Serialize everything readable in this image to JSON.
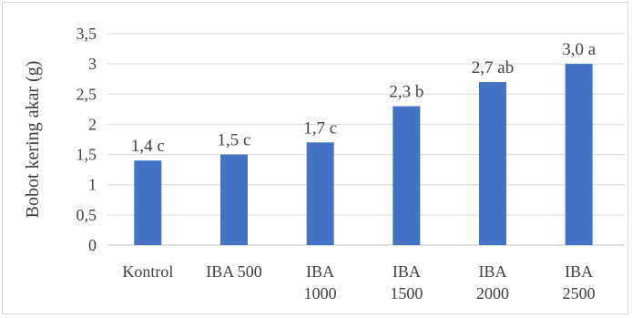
{
  "chart_data": {
    "type": "bar",
    "title": "",
    "xlabel": "",
    "ylabel": "Bobot kering akar (g)",
    "ylim": [
      0,
      3.5
    ],
    "ytick_values": [
      0,
      0.5,
      1,
      1.5,
      2,
      2.5,
      3,
      3.5
    ],
    "ytick_labels": [
      "0",
      "0,5",
      "1",
      "1,5",
      "2",
      "2,5",
      "3",
      "3,5"
    ],
    "grid": "horizontal",
    "legend": "none",
    "bar_color": "#4472c4",
    "categories": [
      [
        "Kontrol"
      ],
      [
        "IBA 500"
      ],
      [
        "IBA",
        "1000"
      ],
      [
        "IBA",
        "1500"
      ],
      [
        "IBA",
        "2000"
      ],
      [
        "IBA",
        "2500"
      ]
    ],
    "values": [
      1.4,
      1.5,
      1.7,
      2.3,
      2.7,
      3.0
    ],
    "data_labels": [
      "1,4 c",
      "1,5 c",
      "1,7 c",
      "2,3 b",
      "2,7 ab",
      "3,0 a"
    ]
  }
}
